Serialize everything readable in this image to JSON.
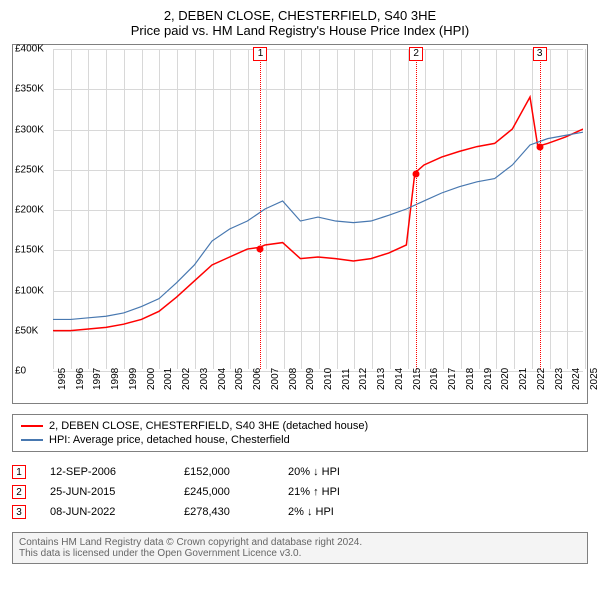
{
  "title": "2, DEBEN CLOSE, CHESTERFIELD, S40 3HE",
  "subtitle": "Price paid vs. HM Land Registry's House Price Index (HPI)",
  "chart": {
    "type": "line",
    "x_years": [
      1995,
      1996,
      1997,
      1998,
      1999,
      2000,
      2001,
      2002,
      2003,
      2004,
      2005,
      2006,
      2007,
      2008,
      2009,
      2010,
      2011,
      2012,
      2013,
      2014,
      2015,
      2016,
      2017,
      2018,
      2019,
      2020,
      2021,
      2022,
      2023,
      2024,
      2025
    ],
    "ylim": [
      0,
      400000
    ],
    "y_ticks": [
      0,
      50000,
      100000,
      150000,
      200000,
      250000,
      300000,
      350000,
      400000
    ],
    "y_tick_labels": [
      "£0",
      "£50K",
      "£100K",
      "£150K",
      "£200K",
      "£250K",
      "£300K",
      "£350K",
      "£400K"
    ],
    "grid_color": "#d8d8d8",
    "background_color": "#ffffff",
    "series": [
      {
        "name": "property",
        "label": "2, DEBEN CLOSE, CHESTERFIELD, S40 3HE (detached house)",
        "color": "#ff0000",
        "width": 1.5,
        "points": {
          "1995": 48000,
          "1996": 48000,
          "1997": 50000,
          "1998": 52000,
          "1999": 56000,
          "2000": 62000,
          "2001": 72000,
          "2002": 90000,
          "2003": 110000,
          "2004": 130000,
          "2005": 140000,
          "2006": 150000,
          "2006.7": 152000,
          "2007": 155000,
          "2008": 158000,
          "2009": 138000,
          "2010": 140000,
          "2011": 138000,
          "2012": 135000,
          "2013": 138000,
          "2014": 145000,
          "2015": 155000,
          "2015.48": 245000,
          "2016": 255000,
          "2017": 265000,
          "2018": 272000,
          "2019": 278000,
          "2020": 282000,
          "2021": 300000,
          "2022": 340000,
          "2022.44": 278430,
          "2023": 282000,
          "2024": 290000,
          "2025": 300000
        }
      },
      {
        "name": "hpi",
        "label": "HPI: Average price, detached house, Chesterfield",
        "color": "#4878b0",
        "width": 1.2,
        "points": {
          "1995": 62000,
          "1996": 62000,
          "1997": 64000,
          "1998": 66000,
          "1999": 70000,
          "2000": 78000,
          "2001": 88000,
          "2002": 108000,
          "2003": 130000,
          "2004": 160000,
          "2005": 175000,
          "2006": 185000,
          "2007": 200000,
          "2008": 210000,
          "2009": 185000,
          "2010": 190000,
          "2011": 185000,
          "2012": 183000,
          "2013": 185000,
          "2014": 192000,
          "2015": 200000,
          "2016": 210000,
          "2017": 220000,
          "2018": 228000,
          "2019": 234000,
          "2020": 238000,
          "2021": 255000,
          "2022": 280000,
          "2023": 288000,
          "2024": 292000,
          "2025": 296000
        }
      }
    ],
    "event_markers": [
      {
        "n": "1",
        "year": 2006.7,
        "price": 152000
      },
      {
        "n": "2",
        "year": 2015.48,
        "price": 245000
      },
      {
        "n": "3",
        "year": 2022.44,
        "price": 278430
      }
    ]
  },
  "legend": {
    "items": [
      {
        "color": "#ff0000",
        "label": "2, DEBEN CLOSE, CHESTERFIELD, S40 3HE (detached house)"
      },
      {
        "color": "#4878b0",
        "label": "HPI: Average price, detached house, Chesterfield"
      }
    ]
  },
  "events": [
    {
      "n": "1",
      "date": "12-SEP-2006",
      "price": "£152,000",
      "diff": "20% ↓ HPI"
    },
    {
      "n": "2",
      "date": "25-JUN-2015",
      "price": "£245,000",
      "diff": "21% ↑ HPI"
    },
    {
      "n": "3",
      "date": "08-JUN-2022",
      "price": "£278,430",
      "diff": "2% ↓ HPI"
    }
  ],
  "footnote_line1": "Contains HM Land Registry data © Crown copyright and database right 2024.",
  "footnote_line2": "This data is licensed under the Open Government Licence v3.0."
}
